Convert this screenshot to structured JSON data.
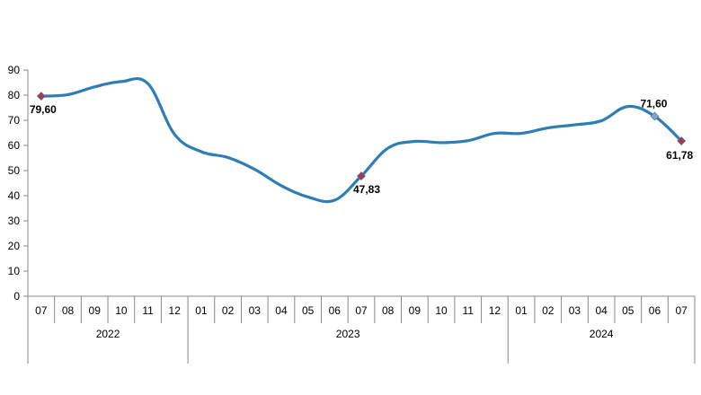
{
  "chart_data": {
    "type": "line",
    "title": "",
    "xlabel": "",
    "ylabel": "",
    "ylim": [
      0,
      90
    ],
    "y_ticks": [
      "0",
      "10",
      "20",
      "30",
      "40",
      "50",
      "60",
      "70",
      "80",
      "90"
    ],
    "grid": false,
    "legend": "none",
    "line_color": "#2E7DB5",
    "marker_color": "#A23B55",
    "categories": [
      "07",
      "08",
      "09",
      "10",
      "11",
      "12",
      "01",
      "02",
      "03",
      "04",
      "05",
      "06",
      "07",
      "08",
      "09",
      "10",
      "11",
      "12",
      "01",
      "02",
      "03",
      "04",
      "05",
      "06",
      "07"
    ],
    "years": [
      {
        "label": "2022",
        "start": 0,
        "count": 6
      },
      {
        "label": "2023",
        "start": 6,
        "count": 12
      },
      {
        "label": "2024",
        "start": 18,
        "count": 7
      }
    ],
    "series": [
      {
        "values": [
          79.6,
          80.2,
          83.3,
          85.4,
          84.6,
          64.4,
          57.5,
          55.2,
          50.5,
          44.0,
          39.5,
          38.2,
          47.83,
          58.9,
          61.6,
          61.1,
          61.9,
          64.8,
          64.8,
          67.0,
          68.2,
          69.8,
          75.5,
          71.6,
          61.78
        ]
      }
    ],
    "data_labels": [
      {
        "index": 0,
        "text": "79,60",
        "marker": "diamond-red"
      },
      {
        "index": 12,
        "text": "47,83",
        "marker": "diamond-red"
      },
      {
        "index": 23,
        "text": "71,60",
        "marker": "diamond-blue"
      },
      {
        "index": 24,
        "text": "61,78",
        "marker": "diamond-red"
      }
    ]
  }
}
